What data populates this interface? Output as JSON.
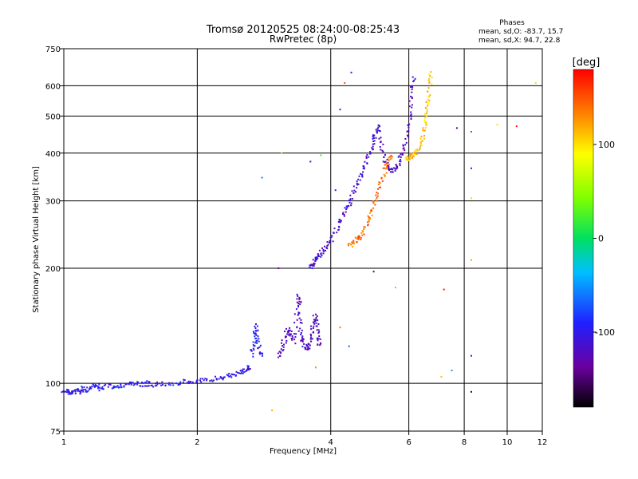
{
  "chart_data": {
    "type": "scatter",
    "title": "Tromsø 20120525 08:24:00-08:25:43",
    "subtitle": "RwPretec (8p)",
    "xlabel": "Frequency [MHz]",
    "ylabel": "Stationary phase Virtual Height [km]",
    "x_scale": "log",
    "y_scale": "log",
    "xlim": [
      1,
      12
    ],
    "ylim": [
      75,
      750
    ],
    "x_ticks": [
      1,
      2,
      4,
      6,
      8,
      10,
      12
    ],
    "y_ticks": [
      75,
      100,
      200,
      300,
      400,
      500,
      600,
      750
    ],
    "grid": true,
    "phase_stats": {
      "title": "Phases",
      "line_o": "mean, sd,O:  -83.7, 15.7",
      "line_x": "mean, sd,X:  94.7, 22.8"
    },
    "colorbar": {
      "label": "[deg]",
      "range": [
        -180,
        180
      ],
      "ticks": [
        100,
        0,
        -100
      ],
      "colormap": "rainbow"
    },
    "traces": [
      {
        "phase": -100,
        "points": [
          [
            1.0,
            96
          ],
          [
            1.02,
            95
          ],
          [
            1.04,
            94
          ],
          [
            1.06,
            96
          ],
          [
            1.08,
            95
          ],
          [
            1.1,
            97
          ],
          [
            1.12,
            96
          ],
          [
            1.15,
            98
          ],
          [
            1.18,
            99
          ],
          [
            1.2,
            97
          ],
          [
            1.25,
            98
          ],
          [
            1.3,
            98
          ],
          [
            1.35,
            99
          ],
          [
            1.4,
            99
          ],
          [
            1.45,
            100
          ],
          [
            1.5,
            99
          ],
          [
            1.55,
            100
          ],
          [
            1.6,
            99
          ],
          [
            1.7,
            100
          ],
          [
            1.8,
            100
          ],
          [
            1.9,
            101
          ],
          [
            2.0,
            101
          ],
          [
            2.1,
            102
          ],
          [
            2.2,
            103
          ],
          [
            2.3,
            104
          ],
          [
            2.4,
            105
          ],
          [
            2.5,
            107
          ],
          [
            2.55,
            108
          ],
          [
            2.6,
            109
          ],
          [
            2.62,
            110
          ]
        ]
      },
      {
        "phase": -95,
        "points": [
          [
            2.65,
            118
          ],
          [
            2.68,
            125
          ],
          [
            2.7,
            135
          ],
          [
            2.72,
            142
          ],
          [
            2.74,
            130
          ],
          [
            2.76,
            122
          ],
          [
            2.8,
            118
          ]
        ]
      },
      {
        "phase": -120,
        "points": [
          [
            3.05,
            118
          ],
          [
            3.1,
            122
          ],
          [
            3.15,
            130
          ],
          [
            3.2,
            138
          ],
          [
            3.25,
            135
          ],
          [
            3.3,
            128
          ],
          [
            3.35,
            150
          ],
          [
            3.38,
            170
          ],
          [
            3.4,
            160
          ],
          [
            3.42,
            140
          ],
          [
            3.45,
            130
          ],
          [
            3.5,
            125
          ],
          [
            3.55,
            122
          ],
          [
            3.6,
            128
          ],
          [
            3.62,
            135
          ],
          [
            3.65,
            145
          ],
          [
            3.7,
            150
          ],
          [
            3.72,
            140
          ],
          [
            3.75,
            130
          ],
          [
            3.78,
            125
          ]
        ]
      },
      {
        "phase": -115,
        "points": [
          [
            3.6,
            200
          ],
          [
            3.65,
            205
          ],
          [
            3.7,
            210
          ],
          [
            3.75,
            215
          ],
          [
            3.8,
            220
          ],
          [
            3.9,
            225
          ],
          [
            4.0,
            235
          ],
          [
            4.1,
            250
          ],
          [
            4.2,
            265
          ],
          [
            4.3,
            280
          ],
          [
            4.4,
            295
          ],
          [
            4.5,
            315
          ],
          [
            4.6,
            335
          ],
          [
            4.7,
            355
          ],
          [
            4.8,
            380
          ],
          [
            4.9,
            405
          ],
          [
            5.0,
            430
          ],
          [
            5.05,
            450
          ],
          [
            5.1,
            470
          ]
        ]
      },
      {
        "phase": -120,
        "points": [
          [
            5.1,
            470
          ],
          [
            5.2,
            420
          ],
          [
            5.3,
            385
          ],
          [
            5.4,
            365
          ],
          [
            5.5,
            360
          ],
          [
            5.6,
            365
          ],
          [
            5.7,
            380
          ],
          [
            5.8,
            400
          ],
          [
            5.9,
            430
          ],
          [
            6.0,
            470
          ],
          [
            6.05,
            520
          ],
          [
            6.1,
            580
          ],
          [
            6.15,
            640
          ]
        ]
      },
      {
        "phase": 140,
        "points": [
          [
            4.4,
            230
          ],
          [
            4.5,
            232
          ],
          [
            4.6,
            238
          ],
          [
            4.7,
            245
          ],
          [
            4.8,
            258
          ],
          [
            4.9,
            272
          ],
          [
            5.0,
            290
          ],
          [
            5.1,
            310
          ],
          [
            5.2,
            335
          ],
          [
            5.3,
            360
          ],
          [
            5.4,
            380
          ],
          [
            5.5,
            395
          ]
        ]
      },
      {
        "phase": 110,
        "points": [
          [
            5.9,
            385
          ],
          [
            6.0,
            390
          ],
          [
            6.1,
            395
          ],
          [
            6.2,
            400
          ],
          [
            6.3,
            410
          ],
          [
            6.4,
            430
          ],
          [
            6.5,
            460
          ],
          [
            6.55,
            490
          ],
          [
            6.6,
            520
          ],
          [
            6.65,
            560
          ],
          [
            6.7,
            610
          ],
          [
            6.75,
            650
          ]
        ]
      }
    ],
    "scattered_points": [
      {
        "x": 2.8,
        "y": 345,
        "phase": -60
      },
      {
        "x": 3.05,
        "y": 200,
        "phase": -130
      },
      {
        "x": 3.6,
        "y": 380,
        "phase": -110
      },
      {
        "x": 3.8,
        "y": 395,
        "phase": 20
      },
      {
        "x": 4.1,
        "y": 320,
        "phase": -100
      },
      {
        "x": 4.2,
        "y": 520,
        "phase": -95
      },
      {
        "x": 4.45,
        "y": 650,
        "phase": -90
      },
      {
        "x": 4.3,
        "y": 610,
        "phase": 150
      },
      {
        "x": 4.2,
        "y": 140,
        "phase": 140
      },
      {
        "x": 4.4,
        "y": 125,
        "phase": -70
      },
      {
        "x": 5.0,
        "y": 196,
        "phase": -150
      },
      {
        "x": 5.6,
        "y": 178,
        "phase": 120
      },
      {
        "x": 7.2,
        "y": 176,
        "phase": 175
      },
      {
        "x": 7.1,
        "y": 104,
        "phase": 110
      },
      {
        "x": 7.5,
        "y": 108,
        "phase": -50
      },
      {
        "x": 7.7,
        "y": 465,
        "phase": -150
      },
      {
        "x": 8.3,
        "y": 455,
        "phase": -60
      },
      {
        "x": 8.3,
        "y": 365,
        "phase": -90
      },
      {
        "x": 8.3,
        "y": 305,
        "phase": 60
      },
      {
        "x": 8.3,
        "y": 210,
        "phase": 120
      },
      {
        "x": 8.3,
        "y": 118,
        "phase": -100
      },
      {
        "x": 8.3,
        "y": 95,
        "phase": -160
      },
      {
        "x": 9.5,
        "y": 475,
        "phase": 100
      },
      {
        "x": 10.5,
        "y": 470,
        "phase": 175
      },
      {
        "x": 11.6,
        "y": 610,
        "phase": 60
      },
      {
        "x": 2.95,
        "y": 85,
        "phase": 120
      },
      {
        "x": 3.1,
        "y": 400,
        "phase": 110
      },
      {
        "x": 3.7,
        "y": 110,
        "phase": 130
      }
    ]
  }
}
